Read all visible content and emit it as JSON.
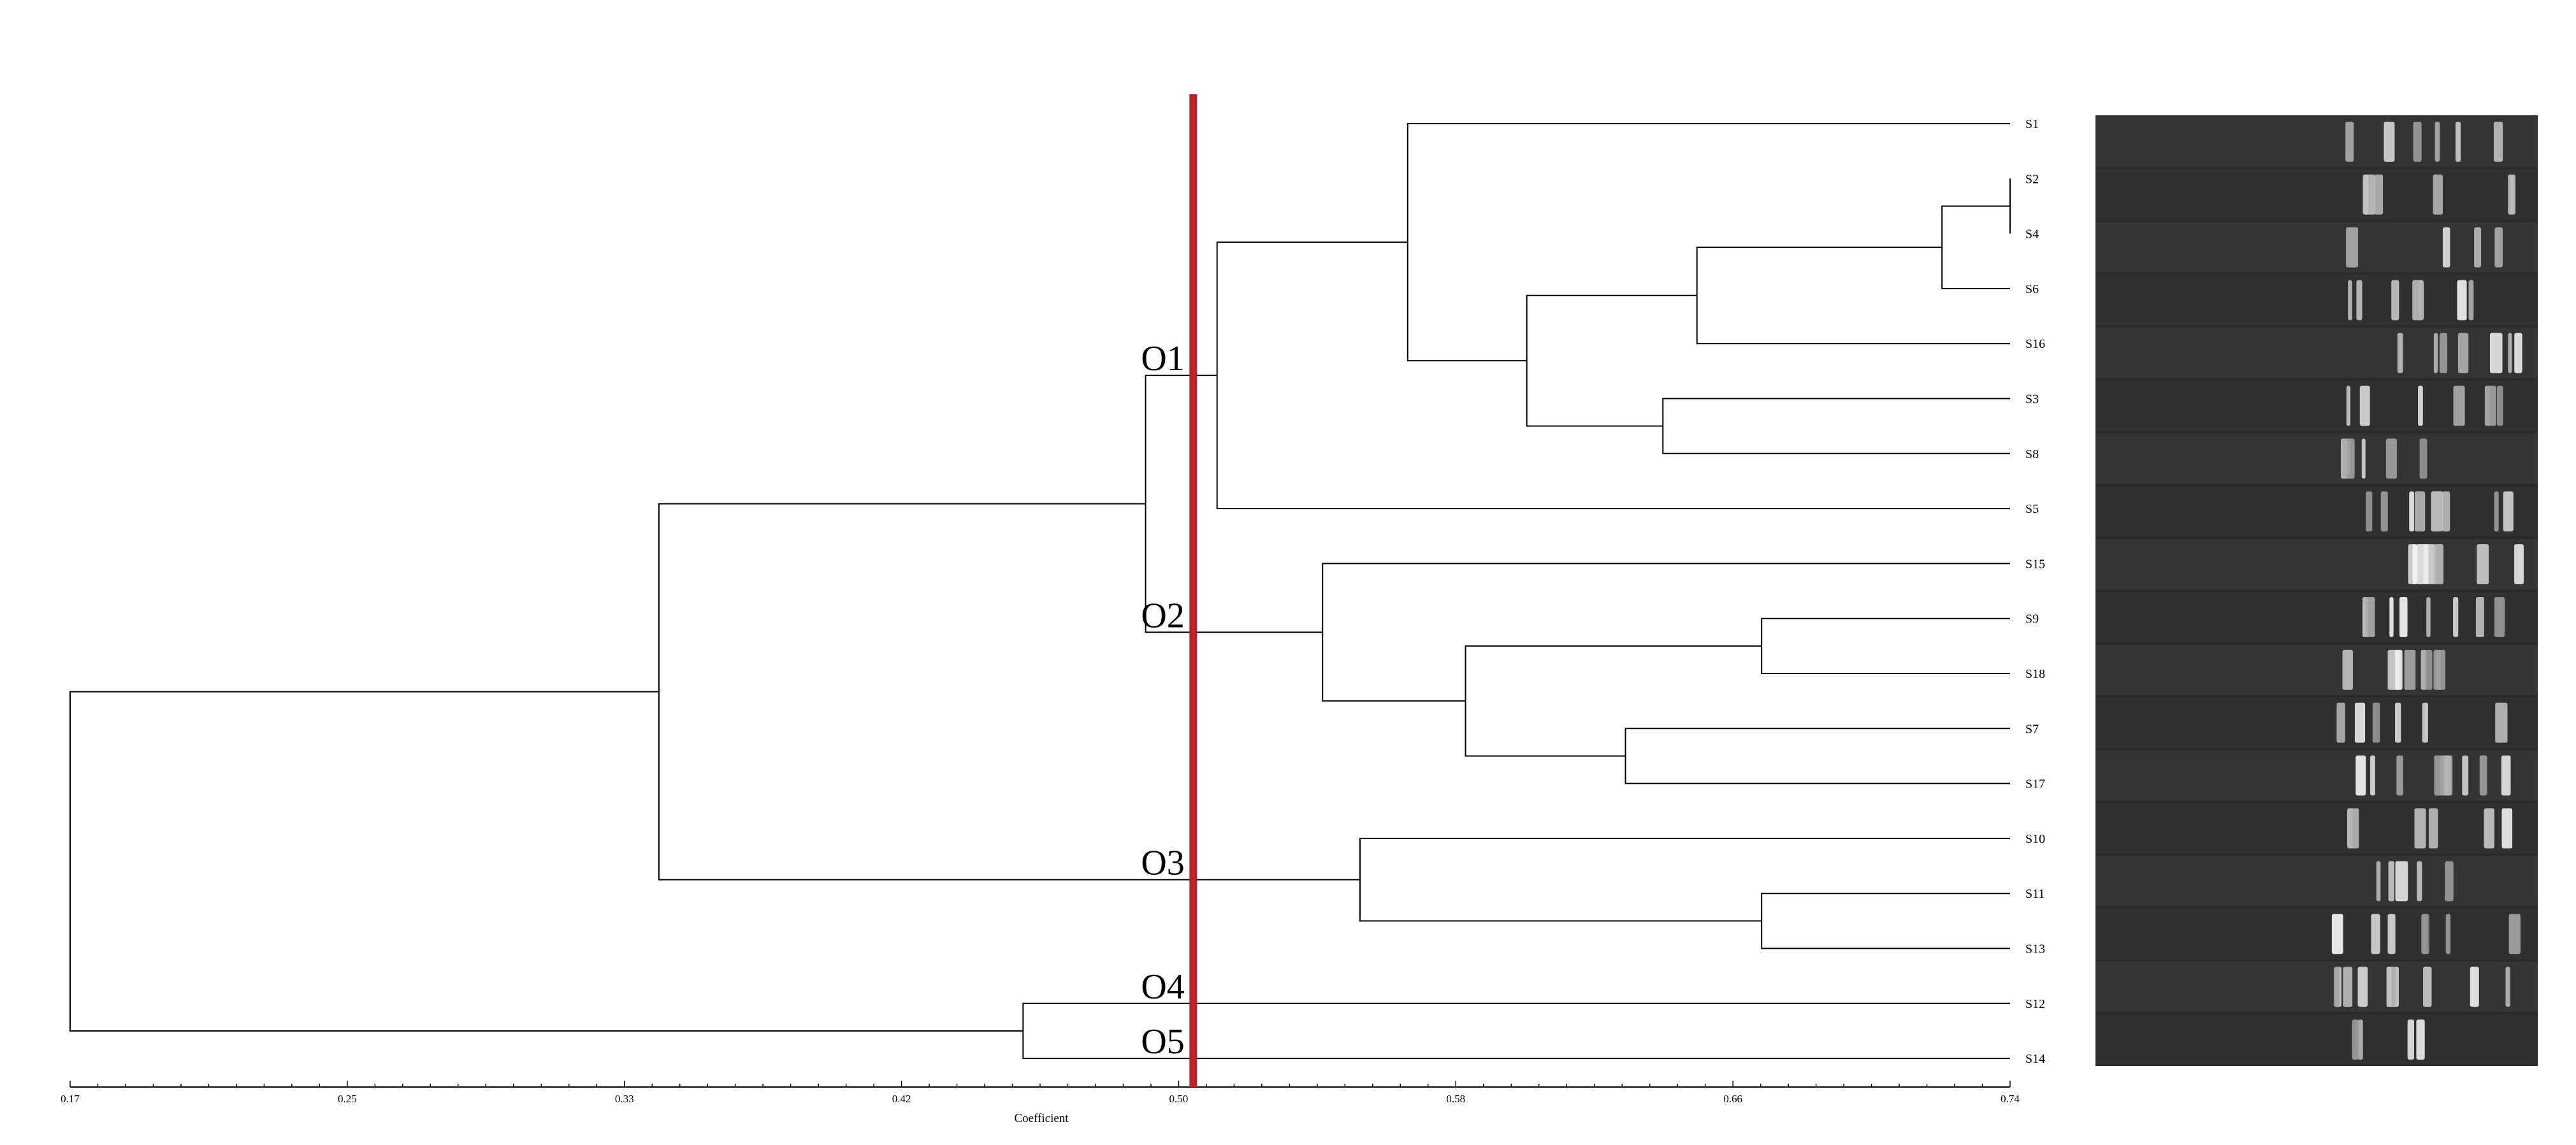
{
  "chart_data": {
    "type": "dendrogram",
    "xlabel": "Coefficient",
    "xlim": [
      0.17,
      0.74
    ],
    "x_ticks": [
      "0.17",
      "0.25",
      "0.33",
      "0.42",
      "0.50",
      "0.58",
      "0.66",
      "0.74"
    ],
    "cutoff": 0.5,
    "cutoff_color": "#b8232c",
    "leaves": [
      "S1",
      "S2",
      "S4",
      "S6",
      "S16",
      "S3",
      "S8",
      "S5",
      "S15",
      "S9",
      "S18",
      "S7",
      "S17",
      "S10",
      "S11",
      "S13",
      "S12",
      "S14"
    ],
    "merges": [
      {
        "a": "S2",
        "b": "S4",
        "height": 0.74
      },
      {
        "a": "S2+S4",
        "b": "S6",
        "height": 0.72
      },
      {
        "a": "S2+S4+S6",
        "b": "S16",
        "height": 0.648
      },
      {
        "a": "S3",
        "b": "S8",
        "height": 0.638
      },
      {
        "a": "S2-S16",
        "b": "S3+S8",
        "height": 0.598
      },
      {
        "a": "S1",
        "b": "S2-S8",
        "height": 0.563
      },
      {
        "a": "S1-S8",
        "b": "S5",
        "height": 0.507
      },
      {
        "a": "S9",
        "b": "S18",
        "height": 0.667
      },
      {
        "a": "S7",
        "b": "S17",
        "height": 0.627
      },
      {
        "a": "S9+S18",
        "b": "S7+S17",
        "height": 0.58
      },
      {
        "a": "S15",
        "b": "S9-S17",
        "height": 0.538
      },
      {
        "a": "O1",
        "b": "O2",
        "height": 0.486
      },
      {
        "a": "S11",
        "b": "S13",
        "height": 0.667
      },
      {
        "a": "S10",
        "b": "S11+S13",
        "height": 0.549
      },
      {
        "a": "O1+O2",
        "b": "O3",
        "height": 0.343
      },
      {
        "a": "S12",
        "b": "S14",
        "height": 0.45
      },
      {
        "a": "O1-O3",
        "b": "O4+O5",
        "height": 0.17
      }
    ],
    "clusters": [
      {
        "label": "O1",
        "members": [
          "S1",
          "S2",
          "S4",
          "S6",
          "S16",
          "S3",
          "S8",
          "S5"
        ]
      },
      {
        "label": "O2",
        "members": [
          "S15",
          "S9",
          "S18",
          "S7",
          "S17"
        ]
      },
      {
        "label": "O3",
        "members": [
          "S10",
          "S11",
          "S13"
        ]
      },
      {
        "label": "O4",
        "members": [
          "S12"
        ]
      },
      {
        "label": "O5",
        "members": [
          "S14"
        ]
      }
    ]
  },
  "gel": {
    "lane_count": 18,
    "background": "#2b2b2b"
  }
}
